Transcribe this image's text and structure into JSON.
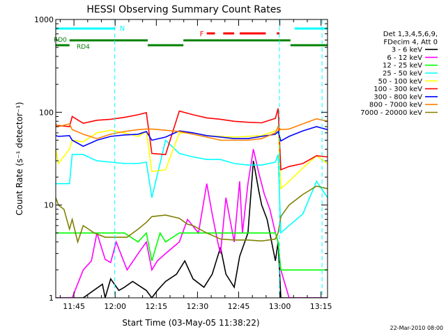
{
  "chart_data": {
    "type": "line",
    "title": "HESSI Observing Summary Count Rates",
    "xlabel": "Start Time (03-May-05 11:38:22)",
    "ylabel": "Count Rate (s⁻¹ detector⁻¹)",
    "y_scale": "log",
    "ylim": [
      1,
      1000
    ],
    "y_ticks": [
      1,
      10,
      100,
      1000
    ],
    "y_tick_labels": [
      "1",
      "10",
      "100",
      "1000"
    ],
    "xlim_minutes": [
      0,
      99
    ],
    "x_ticks": [
      {
        "min": 6.63,
        "label": "11:45"
      },
      {
        "min": 21.63,
        "label": "12:00"
      },
      {
        "min": 36.63,
        "label": "12:15"
      },
      {
        "min": 51.63,
        "label": "12:30"
      },
      {
        "min": 66.63,
        "label": "12:45"
      },
      {
        "min": 81.63,
        "label": "13:00"
      },
      {
        "min": 96.63,
        "label": "13:15"
      }
    ],
    "legend_header": [
      "Det 1,3,4,5,6,9,",
      "FDecim 4, Att 0"
    ],
    "legend_position": "right",
    "series": [
      {
        "name": "3 - 6 keV",
        "color": "#000000",
        "x": [
          0,
          5,
          6,
          10,
          17,
          18,
          20,
          23,
          25,
          28,
          33,
          35,
          37,
          40,
          44,
          47,
          50,
          54,
          57,
          60,
          62,
          65,
          67,
          70,
          72,
          74,
          75,
          77,
          80,
          81,
          82,
          85,
          90,
          95,
          99
        ],
        "y": [
          0,
          0,
          0,
          1,
          1.4,
          1,
          1.6,
          1.2,
          1.3,
          1.5,
          1.2,
          1,
          1.2,
          1.5,
          1.8,
          2.5,
          1.6,
          1.3,
          1.8,
          3.5,
          1.8,
          1.3,
          2.8,
          5,
          30,
          14,
          10,
          7,
          2.5,
          4,
          1,
          0,
          0,
          0,
          0
        ]
      },
      {
        "name": "6 - 12 keV",
        "color": "#ff00ff",
        "x": [
          0,
          5,
          6,
          10,
          13,
          15,
          18,
          20,
          22,
          26,
          30,
          33,
          35,
          37,
          40,
          45,
          48,
          52,
          55,
          57,
          59,
          60,
          62,
          65,
          67,
          68,
          70,
          72,
          74,
          76,
          78,
          80,
          81,
          82,
          85,
          90,
          95,
          99
        ],
        "y": [
          0,
          0,
          0,
          2,
          2.5,
          5,
          2.6,
          2.4,
          4,
          2,
          3,
          4,
          2,
          2.5,
          3,
          4,
          7,
          5,
          17,
          8,
          4,
          3,
          12,
          4,
          18,
          5,
          17,
          40,
          22,
          13,
          9,
          5,
          4,
          2,
          0,
          0,
          0,
          0
        ]
      },
      {
        "name": "12 - 25 keV",
        "color": "#00ff00",
        "x": [
          0,
          1,
          5,
          6,
          10,
          15,
          20,
          25,
          30,
          33,
          35,
          38,
          40,
          45,
          50,
          55,
          60,
          65,
          70,
          75,
          80,
          81,
          82,
          85,
          90,
          95,
          99
        ],
        "y": [
          5,
          5,
          5,
          5,
          5,
          5,
          5,
          5,
          4,
          5,
          2.5,
          5,
          4,
          5,
          5,
          5,
          5,
          5,
          5,
          5,
          5,
          4,
          2,
          2,
          2,
          2,
          2
        ]
      },
      {
        "name": "25 - 50 keV",
        "color": "#00ffff",
        "x": [
          0,
          1,
          5,
          6,
          10,
          15,
          20,
          25,
          30,
          33,
          35,
          40,
          45,
          50,
          55,
          60,
          65,
          70,
          75,
          80,
          81,
          82,
          85,
          90,
          95,
          99
        ],
        "y": [
          17,
          17,
          17,
          35,
          35,
          30,
          29,
          28,
          28,
          29,
          12,
          50,
          36,
          33,
          31,
          31,
          28,
          27,
          27,
          29,
          35,
          5,
          6,
          8,
          18,
          12
        ]
      },
      {
        "name": "50 - 100 keV",
        "color": "#ffff00",
        "x": [
          0,
          1,
          5,
          6,
          10,
          15,
          20,
          25,
          30,
          33,
          35,
          40,
          45,
          50,
          55,
          60,
          65,
          70,
          75,
          80,
          81,
          82,
          85,
          90,
          95,
          99
        ],
        "y": [
          40,
          28,
          40,
          50,
          48,
          60,
          64,
          60,
          55,
          62,
          23,
          24,
          60,
          60,
          56,
          55,
          54,
          55,
          56,
          63,
          66,
          15,
          18,
          25,
          34,
          28
        ]
      },
      {
        "name": "100 - 300 keV",
        "color": "#ff0000",
        "x": [
          0,
          1,
          5,
          6,
          10,
          15,
          20,
          25,
          30,
          33,
          35,
          40,
          45,
          50,
          55,
          60,
          65,
          70,
          75,
          80,
          81,
          82,
          85,
          90,
          95,
          99
        ],
        "y": [
          70,
          72,
          70,
          90,
          76,
          82,
          84,
          88,
          94,
          99,
          36,
          35,
          103,
          94,
          87,
          84,
          80,
          78,
          77,
          86,
          110,
          24,
          26,
          28,
          34,
          33
        ]
      },
      {
        "name": "300 - 800 keV",
        "color": "#0000ff",
        "x": [
          0,
          1,
          5,
          6,
          10,
          15,
          20,
          25,
          30,
          33,
          35,
          40,
          45,
          50,
          55,
          60,
          65,
          70,
          75,
          80,
          81,
          82,
          85,
          90,
          95,
          99
        ],
        "y": [
          56,
          55,
          56,
          50,
          43,
          50,
          55,
          57,
          58,
          62,
          50,
          54,
          63,
          60,
          56,
          54,
          52,
          52,
          55,
          58,
          62,
          49,
          55,
          63,
          70,
          65
        ]
      },
      {
        "name": "800 - 7000 keV",
        "color": "#ff8000",
        "x": [
          0,
          1,
          5,
          6,
          10,
          15,
          20,
          25,
          30,
          33,
          35,
          40,
          45,
          50,
          55,
          60,
          65,
          70,
          75,
          80,
          81,
          82,
          85,
          90,
          95,
          99
        ],
        "y": [
          75,
          70,
          75,
          65,
          58,
          52,
          58,
          62,
          65,
          66,
          66,
          64,
          62,
          58,
          54,
          50,
          50,
          50,
          52,
          60,
          70,
          65,
          66,
          75,
          85,
          80
        ]
      },
      {
        "name": "7000 - 20000 keV",
        "color": "#808000",
        "x": [
          0,
          1,
          3,
          5,
          6,
          8,
          10,
          14,
          18,
          22,
          26,
          30,
          33,
          35,
          40,
          45,
          48,
          50,
          55,
          60,
          65,
          70,
          75,
          80,
          81,
          82,
          85,
          90,
          95,
          99
        ],
        "y": [
          12,
          10,
          9,
          5.5,
          7,
          4,
          6,
          5,
          4.5,
          4.5,
          4.5,
          5.5,
          6.5,
          7.5,
          7.8,
          7.2,
          6.2,
          6,
          5,
          4.3,
          4.2,
          4.2,
          4.1,
          4.3,
          5,
          7.5,
          10,
          13,
          16,
          15
        ]
      }
    ],
    "annotations": {
      "N_label": "N",
      "F_label": "F",
      "RD0_label": "RD0",
      "RD4_label": "RD4",
      "N_bars": [
        [
          0,
          21.5
        ],
        [
          87,
          99
        ]
      ],
      "F_bars": [
        [
          55,
          58
        ],
        [
          61,
          65
        ],
        [
          67,
          76.5
        ],
        [
          80.5,
          81.5
        ]
      ],
      "RD0_bar": [
        [
          0,
          5
        ],
        [
          5,
          33.5
        ],
        [
          33.5,
          46.5
        ],
        [
          46.5,
          85.5
        ],
        [
          85.5,
          99
        ]
      ],
      "dashed_markers": [
        21.5,
        81.5,
        97
      ]
    },
    "footer_date": "22-Mar-2010 08:00"
  }
}
